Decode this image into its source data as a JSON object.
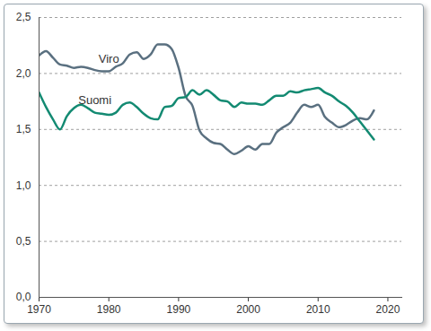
{
  "chart_data": {
    "type": "line",
    "x": [
      1970,
      1971,
      1972,
      1973,
      1974,
      1975,
      1976,
      1977,
      1978,
      1979,
      1980,
      1981,
      1982,
      1983,
      1984,
      1985,
      1986,
      1987,
      1988,
      1989,
      1990,
      1991,
      1992,
      1993,
      1994,
      1995,
      1996,
      1997,
      1998,
      1999,
      2000,
      2001,
      2002,
      2003,
      2004,
      2005,
      2006,
      2007,
      2008,
      2009,
      2010,
      2011,
      2012,
      2013,
      2014,
      2015,
      2016,
      2017,
      2018
    ],
    "series": [
      {
        "name": "Viro",
        "color": "#5a7080",
        "values": [
          2.16,
          2.2,
          2.14,
          2.08,
          2.07,
          2.05,
          2.06,
          2.05,
          2.03,
          2.02,
          2.02,
          2.06,
          2.09,
          2.17,
          2.19,
          2.13,
          2.17,
          2.26,
          2.26,
          2.22,
          2.05,
          1.8,
          1.71,
          1.49,
          1.42,
          1.38,
          1.37,
          1.32,
          1.28,
          1.31,
          1.35,
          1.32,
          1.37,
          1.37,
          1.47,
          1.52,
          1.56,
          1.65,
          1.72,
          1.7,
          1.72,
          1.61,
          1.56,
          1.52,
          1.54,
          1.58,
          1.6,
          1.59,
          1.67
        ]
      },
      {
        "name": "Suomi",
        "color": "#138a72",
        "values": [
          1.83,
          1.7,
          1.59,
          1.5,
          1.62,
          1.69,
          1.72,
          1.69,
          1.65,
          1.64,
          1.63,
          1.65,
          1.72,
          1.74,
          1.7,
          1.64,
          1.6,
          1.59,
          1.7,
          1.71,
          1.78,
          1.79,
          1.85,
          1.81,
          1.85,
          1.81,
          1.76,
          1.75,
          1.7,
          1.74,
          1.73,
          1.73,
          1.72,
          1.76,
          1.8,
          1.8,
          1.84,
          1.83,
          1.85,
          1.86,
          1.87,
          1.83,
          1.8,
          1.75,
          1.71,
          1.65,
          1.57,
          1.49,
          1.41
        ]
      }
    ],
    "xlim": [
      1970,
      2022
    ],
    "xticks": [
      1970,
      1980,
      1990,
      2000,
      2010,
      2020
    ],
    "ylim": [
      0,
      2.5
    ],
    "yticks": [
      {
        "value": 0,
        "label": "0,0"
      },
      {
        "value": 0.5,
        "label": "0,5"
      },
      {
        "value": 1,
        "label": "1,0"
      },
      {
        "value": 1.5,
        "label": "1,5"
      },
      {
        "value": 2,
        "label": "2,0"
      },
      {
        "value": 2.5,
        "label": "2,5"
      }
    ],
    "grid": true
  }
}
